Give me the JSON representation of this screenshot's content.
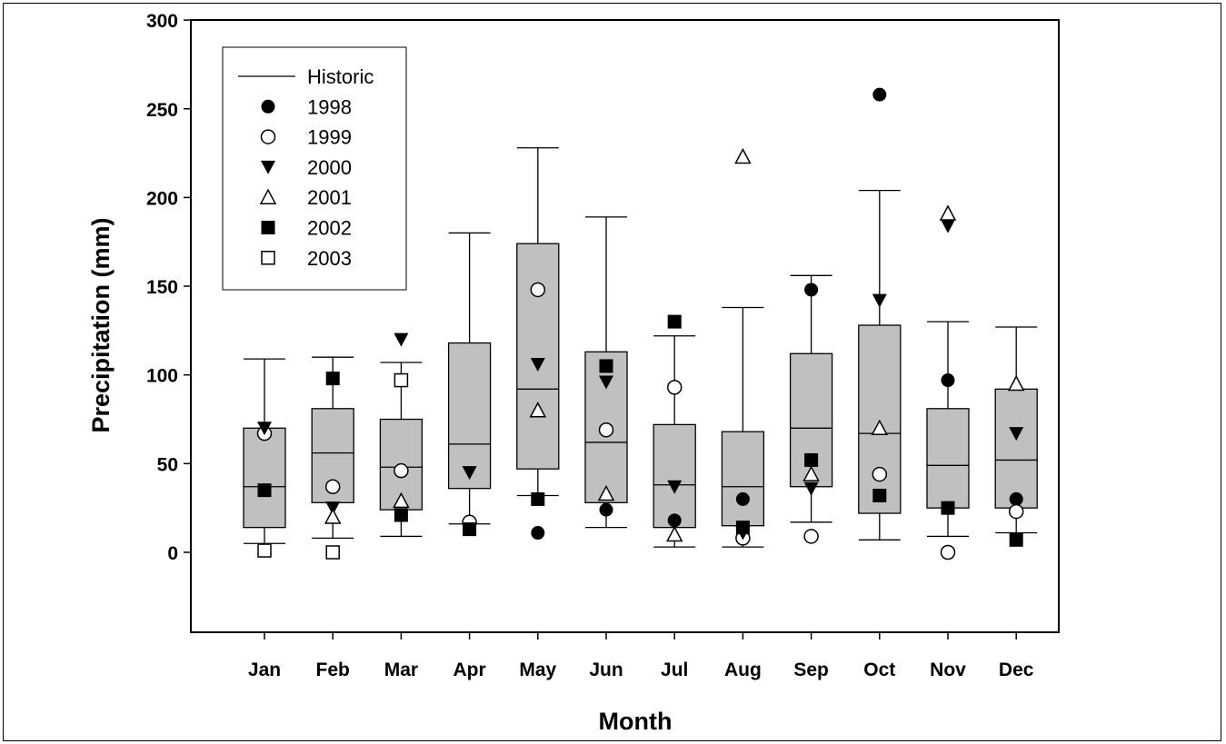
{
  "chart_data": {
    "type": "box",
    "xlabel": "Month",
    "ylabel": "Precipitation (mm)",
    "ylim": [
      -45,
      300
    ],
    "yticks": [
      0,
      50,
      100,
      150,
      200,
      250,
      300
    ],
    "categories": [
      "Jan",
      "Feb",
      "Mar",
      "Apr",
      "May",
      "Jun",
      "Jul",
      "Aug",
      "Sep",
      "Oct",
      "Nov",
      "Dec"
    ],
    "historic": [
      {
        "whisker_low": 5,
        "q1": 14,
        "median": 37,
        "q3": 70,
        "whisker_high": 109
      },
      {
        "whisker_low": 8,
        "q1": 28,
        "median": 56,
        "q3": 81,
        "whisker_high": 110
      },
      {
        "whisker_low": 9,
        "q1": 24,
        "median": 48,
        "q3": 75,
        "whisker_high": 107
      },
      {
        "whisker_low": 16,
        "q1": 36,
        "median": 61,
        "q3": 118,
        "whisker_high": 180
      },
      {
        "whisker_low": 32,
        "q1": 47,
        "median": 92,
        "q3": 174,
        "whisker_high": 228
      },
      {
        "whisker_low": 14,
        "q1": 28,
        "median": 62,
        "q3": 113,
        "whisker_high": 189
      },
      {
        "whisker_low": 3,
        "q1": 14,
        "median": 38,
        "q3": 72,
        "whisker_high": 122
      },
      {
        "whisker_low": 3,
        "q1": 15,
        "median": 37,
        "q3": 68,
        "whisker_high": 138
      },
      {
        "whisker_low": 17,
        "q1": 37,
        "median": 70,
        "q3": 112,
        "whisker_high": 156
      },
      {
        "whisker_low": 7,
        "q1": 22,
        "median": 67,
        "q3": 128,
        "whisker_high": 204
      },
      {
        "whisker_low": 9,
        "q1": 25,
        "median": 49,
        "q3": 81,
        "whisker_high": 130
      },
      {
        "whisker_low": 11,
        "q1": 25,
        "median": 52,
        "q3": 92,
        "whisker_high": 127
      }
    ],
    "series": [
      {
        "name": "1998",
        "marker": "filled-circle",
        "values": [
          null,
          null,
          null,
          null,
          11,
          24,
          18,
          30,
          148,
          258,
          97,
          30
        ]
      },
      {
        "name": "1999",
        "marker": "open-circle",
        "values": [
          67,
          37,
          46,
          17,
          148,
          69,
          93,
          8,
          9,
          44,
          0,
          23
        ]
      },
      {
        "name": "2000",
        "marker": "filled-triangle-down",
        "values": [
          70,
          25,
          120,
          45,
          106,
          96,
          37,
          11,
          36,
          142,
          184,
          67
        ]
      },
      {
        "name": "2001",
        "marker": "open-triangle-up",
        "values": [
          null,
          20,
          29,
          null,
          80,
          33,
          10,
          223,
          44,
          70,
          191,
          95
        ]
      },
      {
        "name": "2002",
        "marker": "filled-square",
        "values": [
          35,
          98,
          21,
          13,
          30,
          105,
          130,
          14,
          52,
          32,
          25,
          7
        ]
      },
      {
        "name": "2003",
        "marker": "open-square",
        "values": [
          1,
          0,
          97,
          null,
          null,
          null,
          null,
          null,
          null,
          null,
          null,
          null
        ]
      }
    ],
    "legend": {
      "position": "top-left",
      "historic_label": "Historic"
    }
  }
}
